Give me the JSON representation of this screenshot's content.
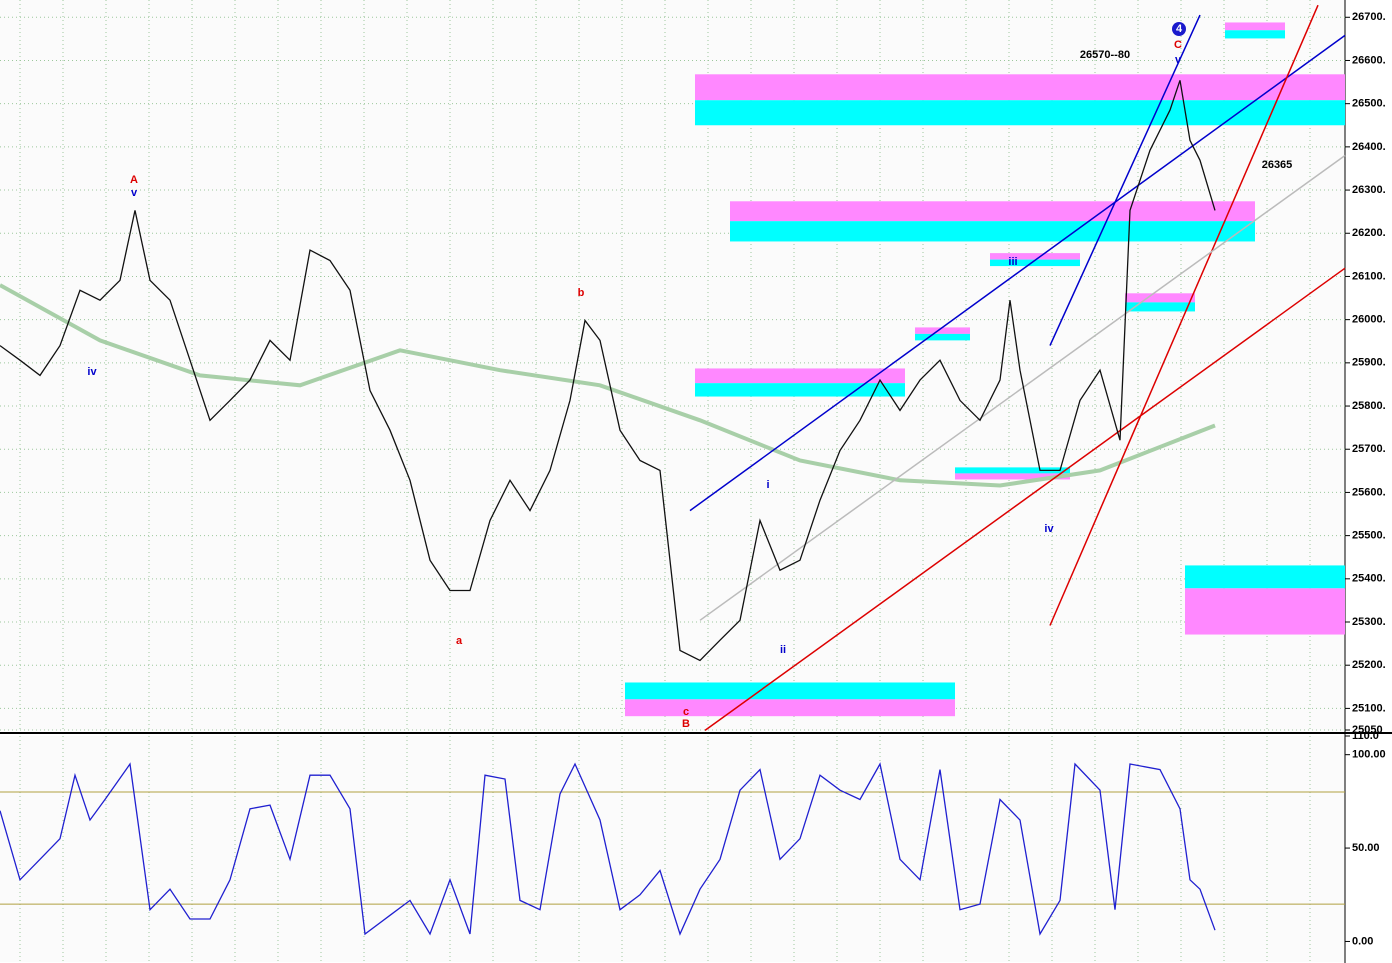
{
  "chart_data": [
    {
      "type": "line",
      "xlim": [
        0,
        269
      ],
      "ylim": [
        25050,
        26740
      ],
      "yticks": [
        {
          "value": 26700,
          "label": "26700."
        },
        {
          "value": 26600,
          "label": "26600."
        },
        {
          "value": 26500,
          "label": "26500."
        },
        {
          "value": 26400,
          "label": "26400."
        },
        {
          "value": 26300,
          "label": "26300."
        },
        {
          "value": 26200,
          "label": "26200."
        },
        {
          "value": 26100,
          "label": "26100."
        },
        {
          "value": 26000,
          "label": "26000."
        },
        {
          "value": 25900,
          "label": "25900."
        },
        {
          "value": 25800,
          "label": "25800."
        },
        {
          "value": 25700,
          "label": "25700."
        },
        {
          "value": 25600,
          "label": "25600."
        },
        {
          "value": 25500,
          "label": "25500."
        },
        {
          "value": 25400,
          "label": "25400."
        },
        {
          "value": 25300,
          "label": "25300."
        },
        {
          "value": 25200,
          "label": "25200."
        },
        {
          "value": 25100,
          "label": "25100."
        },
        {
          "value": 25050,
          "label": "25050"
        }
      ],
      "grid": true,
      "x": [
        0,
        4,
        8,
        12,
        16,
        20,
        24,
        27,
        30,
        34,
        38,
        42,
        46,
        50,
        54,
        58,
        62,
        66,
        70,
        74,
        78,
        82,
        86,
        90,
        94,
        98,
        102,
        106,
        110,
        114,
        117,
        120,
        124,
        128,
        132,
        136,
        140,
        144,
        148,
        152,
        156,
        160,
        164,
        168,
        172,
        176,
        180,
        184,
        188,
        192,
        196,
        200,
        202,
        204,
        208,
        212,
        216,
        220,
        224,
        226,
        230,
        234,
        236,
        238,
        240,
        243
      ],
      "series": [
        {
          "color": "#111111",
          "values": [
            25940,
            25906,
            25871,
            25940,
            26068,
            26045,
            26091,
            26253,
            26091,
            26045,
            25906,
            25767,
            25813,
            25860,
            25952,
            25906,
            26161,
            26137,
            26068,
            25836,
            25744,
            25628,
            25443,
            25373,
            25373,
            25535,
            25628,
            25558,
            25651,
            25813,
            25998,
            25952,
            25744,
            25674,
            25651,
            25234,
            25211,
            25258,
            25304,
            25535,
            25420,
            25443,
            25582,
            25697,
            25767,
            25860,
            25790,
            25860,
            25906,
            25813,
            25767,
            25860,
            26045,
            25883,
            25651,
            25651,
            25813,
            25883,
            25721,
            26253,
            26392,
            26485,
            26554,
            26415,
            26369,
            26253
          ]
        }
      ],
      "average": {
        "color": "#a8cfa8",
        "x": [
          0,
          20,
          40,
          60,
          80,
          100,
          120,
          140,
          160,
          180,
          200,
          220,
          243
        ],
        "values": [
          26080,
          25952,
          25871,
          25848,
          25929,
          25883,
          25848,
          25767,
          25674,
          25628,
          25616,
          25651,
          25755
        ]
      },
      "zones": [
        {
          "x": [
            139,
            269
          ],
          "top": 26568,
          "mid": 26508,
          "bottom": 26450,
          "top_color": "#ff88ff",
          "bottom_color": "#00ffff"
        },
        {
          "x": [
            146,
            251
          ],
          "top": 26274,
          "mid": 26228,
          "bottom": 26181,
          "top_color": "#ff88ff",
          "bottom_color": "#00ffff"
        },
        {
          "x": [
            139,
            181
          ],
          "top": 25887,
          "mid": 25853,
          "bottom": 25822,
          "top_color": "#ff88ff",
          "bottom_color": "#00ffff"
        },
        {
          "x": [
            125,
            191
          ],
          "top": 25160,
          "mid": 25121,
          "bottom": 25082,
          "top_color": "#00ffff",
          "bottom_color": "#ff88ff"
        },
        {
          "x": [
            237,
            269
          ],
          "top": 25431,
          "mid": 25378,
          "bottom": 25271,
          "top_color": "#00ffff",
          "bottom_color": "#ff88ff"
        },
        {
          "x": [
            245,
            257
          ],
          "top": 26688,
          "mid": 26670,
          "bottom": 26651,
          "top_color": "#ff88ff",
          "bottom_color": "#00ffff"
        },
        {
          "x": [
            198,
            216
          ],
          "top": 26154,
          "mid": 26139,
          "bottom": 26124,
          "top_color": "#ff88ff",
          "bottom_color": "#00ffff"
        },
        {
          "x": [
            183,
            194
          ],
          "top": 25982,
          "mid": 25967,
          "bottom": 25952,
          "top_color": "#ff88ff",
          "bottom_color": "#00ffff"
        },
        {
          "x": [
            191,
            214
          ],
          "top": 25658,
          "mid": 25644,
          "bottom": 25630,
          "top_color": "#00ffff",
          "bottom_color": "#ff88ff"
        },
        {
          "x": [
            225,
            239
          ],
          "top": 26061,
          "mid": 26040,
          "bottom": 26019,
          "top_color": "#ff88ff",
          "bottom_color": "#00ffff"
        }
      ],
      "trendlines": [
        {
          "x": [
            138,
            269
          ],
          "y": [
            25558,
            26658
          ],
          "color": "#0000cc"
        },
        {
          "x": [
            141,
            269
          ],
          "y": [
            25049,
            26119
          ],
          "color": "#dd0000"
        },
        {
          "x": [
            210,
            240
          ],
          "y": [
            25940,
            26705
          ],
          "color": "#0000cc"
        },
        {
          "x": [
            210,
            263.6
          ],
          "y": [
            25292,
            26728
          ],
          "color": "#dd0000"
        },
        {
          "x": [
            140,
            269
          ],
          "y": [
            25304,
            26380
          ],
          "color": "#bbbbbb"
        }
      ],
      "annotations": [
        {
          "text": "A",
          "color": "#dd0000"
        },
        {
          "text": "v",
          "color": "#0000cc"
        },
        {
          "text": "iv",
          "color": "#0000cc"
        },
        {
          "text": "a",
          "color": "#dd0000"
        },
        {
          "text": "b",
          "color": "#dd0000"
        },
        {
          "text": "c",
          "color": "#dd0000"
        },
        {
          "text": "B",
          "color": "#dd0000"
        },
        {
          "text": "i",
          "color": "#0000cc"
        },
        {
          "text": "ii",
          "color": "#0000cc"
        },
        {
          "text": "iii",
          "color": "#0000cc"
        },
        {
          "text": "iv",
          "color": "#0000cc"
        },
        {
          "text": "v",
          "color": "#0000cc"
        },
        {
          "text": "C",
          "color": "#dd0000"
        },
        {
          "text": "4",
          "color": "#ffffff"
        },
        {
          "text": "26570--80",
          "color": "#000000"
        },
        {
          "text": "26365",
          "color": "#000000"
        }
      ]
    },
    {
      "type": "line",
      "xlim": [
        0,
        269
      ],
      "ylim": [
        -11,
        110
      ],
      "yticks": [
        {
          "value": 110,
          "label": "110.0"
        },
        {
          "value": 100,
          "label": "100.00"
        },
        {
          "value": 50,
          "label": "50.00"
        },
        {
          "value": 0,
          "label": "0.00"
        }
      ],
      "grid": false,
      "hlines": [
        80,
        20
      ],
      "hline_color": "#b0a040",
      "x": [
        0,
        4,
        8,
        12,
        15,
        18,
        21,
        26,
        30,
        34,
        38,
        42,
        46,
        50,
        54,
        58,
        62,
        66,
        70,
        73,
        78,
        82,
        86,
        90,
        94,
        97,
        101,
        104,
        108,
        112,
        115,
        120,
        124,
        128,
        132,
        136,
        140,
        144,
        148,
        152,
        156,
        160,
        164,
        168,
        172,
        176,
        180,
        184,
        188,
        192,
        196,
        200,
        204,
        208,
        212,
        215,
        220,
        223,
        226,
        232,
        236,
        238,
        240,
        243
      ],
      "series": [
        {
          "color": "#2020d0",
          "values": [
            70,
            33,
            44,
            55,
            89,
            65,
            76,
            95,
            17,
            28,
            12,
            12,
            33,
            71,
            73,
            44,
            89,
            89,
            71,
            4,
            14,
            22,
            4,
            33,
            4,
            89,
            87,
            22,
            17,
            79,
            95,
            65,
            17,
            25,
            38,
            4,
            28,
            44,
            81,
            92,
            44,
            55,
            89,
            81,
            76,
            95,
            44,
            33,
            92,
            17,
            20,
            76,
            65,
            4,
            22,
            95,
            81,
            17,
            95,
            92,
            71,
            33,
            28,
            6
          ]
        }
      ]
    }
  ]
}
